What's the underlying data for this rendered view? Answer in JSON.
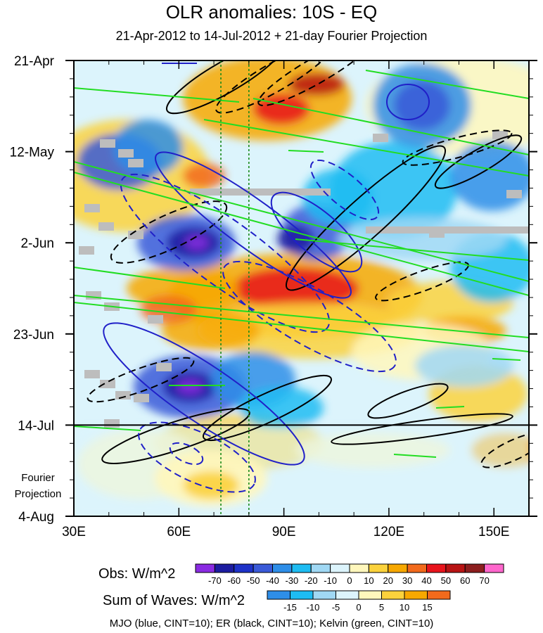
{
  "chart_data": {
    "type": "heatmap",
    "title": "OLR anomalies: 10S - EQ",
    "subtitle": "21-Apr-2012 to 14-Jul-2012 + 21-day Fourier Projection",
    "x_axis": {
      "ticks": [
        "30E",
        "60E",
        "90E",
        "120E",
        "150E"
      ],
      "range": [
        30,
        160
      ],
      "units": "longitude (deg E)"
    },
    "y_axis": {
      "ticks": [
        "21-Apr",
        "12-May",
        "2-Jun",
        "23-Jun",
        "14-Jul",
        "4-Aug"
      ],
      "range": [
        "21-Apr-2012",
        "4-Aug-2012"
      ],
      "reversed": true
    },
    "observation_end": "14-Jul",
    "fourier_label": [
      "Fourier",
      "Projection"
    ],
    "reference_longitudes": [
      72,
      80
    ],
    "obs_colorbar": {
      "label": "Obs: W/m^2",
      "levels": [
        -70,
        -60,
        -50,
        -40,
        -30,
        -20,
        -10,
        0,
        10,
        20,
        30,
        40,
        50,
        60,
        70
      ],
      "colors": [
        "#8a2be2",
        "#1c1ca0",
        "#1e32c8",
        "#3a5ad8",
        "#2e8ee8",
        "#1ebcf2",
        "#a0d8f4",
        "#dcf4fc",
        "#fff7bc",
        "#fbd23c",
        "#f7a800",
        "#f26a1c",
        "#e8141c",
        "#b81414",
        "#8c1e1e",
        "#ff66cc"
      ]
    },
    "waves_colorbar": {
      "label": "Sum of Waves: W/m^2",
      "levels": [
        -15,
        -10,
        -5,
        0,
        5,
        10,
        15
      ],
      "colors": [
        "#2e8ee8",
        "#1ebcf2",
        "#a0d8f4",
        "#dcf4fc",
        "#fff7bc",
        "#fbd23c",
        "#f7a800",
        "#f26a1c"
      ]
    },
    "contours_note": "MJO (blue, CINT=10); ER (black, CINT=10); Kelvin (green, CINT=10)",
    "series": [
      {
        "name": "MJO",
        "color": "#2020c8",
        "cint": 10
      },
      {
        "name": "ER",
        "color": "#000000",
        "cint": 10
      },
      {
        "name": "Kelvin",
        "color": "#22dd22",
        "cint": 10
      }
    ]
  }
}
